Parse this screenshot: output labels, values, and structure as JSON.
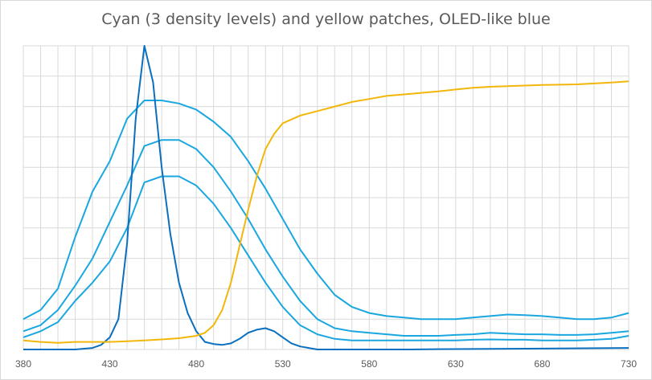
{
  "chart_data": {
    "type": "line",
    "title": "Cyan (3 density levels) and yellow patches,  OLED-like blue",
    "xlabel": "",
    "ylabel": "",
    "xlim": [
      380,
      730
    ],
    "ylim": [
      0,
      1
    ],
    "grid": true,
    "x_ticks": [
      "380",
      "430",
      "480",
      "530",
      "580",
      "630",
      "680",
      "730"
    ],
    "series": [
      {
        "color": "#1aa7e0",
        "points": [
          [
            380,
            0.1
          ],
          [
            390,
            0.13
          ],
          [
            400,
            0.2
          ],
          [
            410,
            0.37
          ],
          [
            420,
            0.52
          ],
          [
            430,
            0.62
          ],
          [
            440,
            0.76
          ],
          [
            450,
            0.82
          ],
          [
            460,
            0.82
          ],
          [
            470,
            0.81
          ],
          [
            480,
            0.79
          ],
          [
            490,
            0.75
          ],
          [
            500,
            0.7
          ],
          [
            510,
            0.62
          ],
          [
            520,
            0.53
          ],
          [
            530,
            0.43
          ],
          [
            540,
            0.33
          ],
          [
            550,
            0.25
          ],
          [
            560,
            0.18
          ],
          [
            570,
            0.14
          ],
          [
            580,
            0.12
          ],
          [
            590,
            0.11
          ],
          [
            600,
            0.105
          ],
          [
            610,
            0.1
          ],
          [
            620,
            0.1
          ],
          [
            630,
            0.1
          ],
          [
            640,
            0.105
          ],
          [
            650,
            0.11
          ],
          [
            660,
            0.115
          ],
          [
            670,
            0.113
          ],
          [
            680,
            0.11
          ],
          [
            690,
            0.105
          ],
          [
            700,
            0.1
          ],
          [
            710,
            0.1
          ],
          [
            720,
            0.105
          ],
          [
            730,
            0.12
          ]
        ]
      },
      {
        "color": "#1aa7e0",
        "points": [
          [
            380,
            0.06
          ],
          [
            390,
            0.08
          ],
          [
            400,
            0.13
          ],
          [
            410,
            0.21
          ],
          [
            420,
            0.3
          ],
          [
            430,
            0.42
          ],
          [
            440,
            0.54
          ],
          [
            450,
            0.67
          ],
          [
            460,
            0.69
          ],
          [
            470,
            0.69
          ],
          [
            480,
            0.66
          ],
          [
            490,
            0.6
          ],
          [
            500,
            0.52
          ],
          [
            510,
            0.43
          ],
          [
            520,
            0.33
          ],
          [
            530,
            0.24
          ],
          [
            540,
            0.16
          ],
          [
            550,
            0.1
          ],
          [
            560,
            0.07
          ],
          [
            570,
            0.06
          ],
          [
            580,
            0.055
          ],
          [
            590,
            0.05
          ],
          [
            600,
            0.045
          ],
          [
            610,
            0.045
          ],
          [
            620,
            0.045
          ],
          [
            630,
            0.048
          ],
          [
            640,
            0.05
          ],
          [
            650,
            0.055
          ],
          [
            660,
            0.052
          ],
          [
            670,
            0.05
          ],
          [
            680,
            0.05
          ],
          [
            690,
            0.048
          ],
          [
            700,
            0.048
          ],
          [
            710,
            0.05
          ],
          [
            720,
            0.055
          ],
          [
            730,
            0.06
          ]
        ]
      },
      {
        "color": "#1aa7e0",
        "points": [
          [
            380,
            0.04
          ],
          [
            390,
            0.06
          ],
          [
            400,
            0.09
          ],
          [
            410,
            0.16
          ],
          [
            420,
            0.22
          ],
          [
            430,
            0.29
          ],
          [
            440,
            0.4
          ],
          [
            450,
            0.55
          ],
          [
            460,
            0.57
          ],
          [
            470,
            0.57
          ],
          [
            480,
            0.54
          ],
          [
            490,
            0.48
          ],
          [
            500,
            0.4
          ],
          [
            510,
            0.31
          ],
          [
            520,
            0.22
          ],
          [
            530,
            0.14
          ],
          [
            540,
            0.08
          ],
          [
            550,
            0.05
          ],
          [
            560,
            0.035
          ],
          [
            570,
            0.03
          ],
          [
            580,
            0.03
          ],
          [
            590,
            0.03
          ],
          [
            600,
            0.03
          ],
          [
            610,
            0.03
          ],
          [
            620,
            0.03
          ],
          [
            630,
            0.03
          ],
          [
            640,
            0.032
          ],
          [
            650,
            0.033
          ],
          [
            660,
            0.032
          ],
          [
            670,
            0.032
          ],
          [
            680,
            0.03
          ],
          [
            690,
            0.03
          ],
          [
            700,
            0.03
          ],
          [
            710,
            0.032
          ],
          [
            720,
            0.035
          ],
          [
            730,
            0.045
          ]
        ]
      },
      {
        "color": "#0a6fbf",
        "points": [
          [
            380,
            0.0
          ],
          [
            400,
            0.0
          ],
          [
            410,
            0.0
          ],
          [
            420,
            0.005
          ],
          [
            425,
            0.015
          ],
          [
            430,
            0.04
          ],
          [
            435,
            0.1
          ],
          [
            440,
            0.35
          ],
          [
            445,
            0.76
          ],
          [
            450,
            1.0
          ],
          [
            455,
            0.88
          ],
          [
            460,
            0.6
          ],
          [
            465,
            0.38
          ],
          [
            470,
            0.22
          ],
          [
            475,
            0.12
          ],
          [
            480,
            0.06
          ],
          [
            485,
            0.025
          ],
          [
            490,
            0.018
          ],
          [
            495,
            0.015
          ],
          [
            500,
            0.02
          ],
          [
            505,
            0.035
          ],
          [
            510,
            0.055
          ],
          [
            515,
            0.065
          ],
          [
            520,
            0.07
          ],
          [
            525,
            0.06
          ],
          [
            530,
            0.04
          ],
          [
            535,
            0.02
          ],
          [
            540,
            0.01
          ],
          [
            545,
            0.005
          ],
          [
            550,
            0.0
          ],
          [
            560,
            0.0
          ],
          [
            600,
            0.0
          ],
          [
            620,
            0.001
          ],
          [
            680,
            0.003
          ],
          [
            730,
            0.005
          ]
        ]
      },
      {
        "color": "#f2b70a",
        "points": [
          [
            380,
            0.03
          ],
          [
            390,
            0.025
          ],
          [
            400,
            0.022
          ],
          [
            410,
            0.025
          ],
          [
            420,
            0.025
          ],
          [
            430,
            0.025
          ],
          [
            440,
            0.027
          ],
          [
            450,
            0.03
          ],
          [
            460,
            0.033
          ],
          [
            470,
            0.037
          ],
          [
            480,
            0.045
          ],
          [
            485,
            0.055
          ],
          [
            490,
            0.08
          ],
          [
            495,
            0.13
          ],
          [
            500,
            0.22
          ],
          [
            505,
            0.34
          ],
          [
            510,
            0.46
          ],
          [
            515,
            0.57
          ],
          [
            520,
            0.66
          ],
          [
            525,
            0.71
          ],
          [
            530,
            0.745
          ],
          [
            540,
            0.77
          ],
          [
            550,
            0.785
          ],
          [
            560,
            0.8
          ],
          [
            570,
            0.815
          ],
          [
            580,
            0.825
          ],
          [
            590,
            0.835
          ],
          [
            600,
            0.84
          ],
          [
            610,
            0.845
          ],
          [
            620,
            0.85
          ],
          [
            630,
            0.856
          ],
          [
            640,
            0.862
          ],
          [
            650,
            0.865
          ],
          [
            660,
            0.867
          ],
          [
            670,
            0.869
          ],
          [
            680,
            0.871
          ],
          [
            690,
            0.872
          ],
          [
            700,
            0.873
          ],
          [
            710,
            0.876
          ],
          [
            720,
            0.879
          ],
          [
            730,
            0.883
          ]
        ]
      }
    ]
  }
}
